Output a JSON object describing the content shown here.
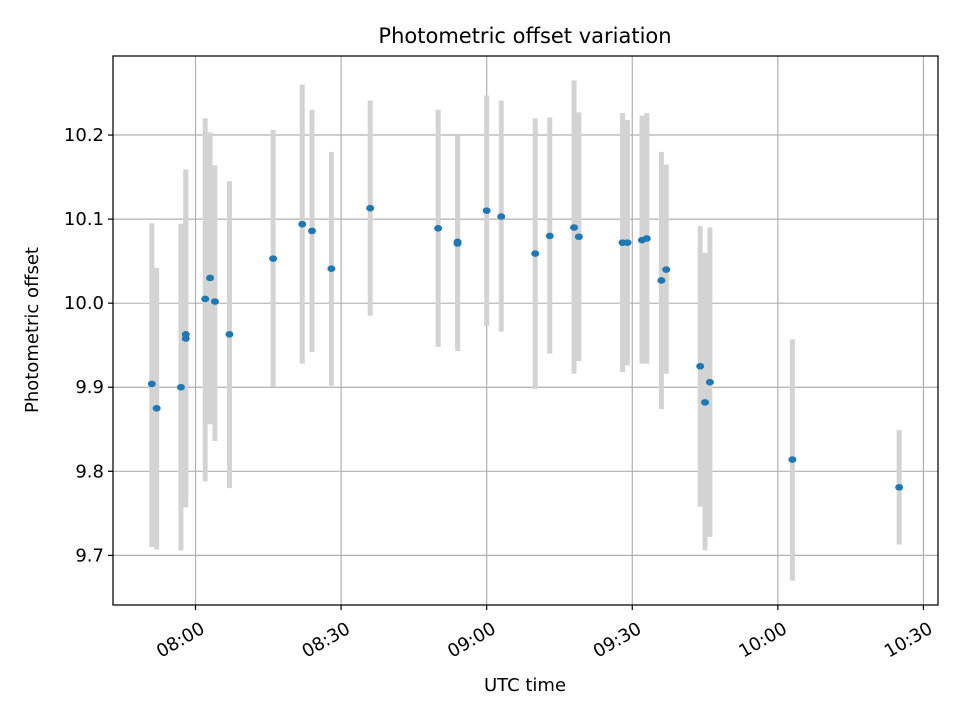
{
  "chart_data": {
    "type": "scatter",
    "title": "Photometric offset variation",
    "xlabel": "UTC time",
    "ylabel": "Photometric offset",
    "x_unit": "UTC time (hh:mm)",
    "xlim": [
      "07:43",
      "10:33"
    ],
    "ylim": [
      9.641,
      10.294
    ],
    "grid": true,
    "error_bar_color": "#d3d3d3",
    "point_color": "#1f77b4",
    "xticks": [
      "08:00",
      "08:30",
      "09:00",
      "09:30",
      "10:00",
      "10:30"
    ],
    "yticks": [
      9.7,
      9.8,
      9.9,
      10.0,
      10.1,
      10.2
    ],
    "points": [
      {
        "x": "07:51",
        "y": 9.904,
        "yerr_low": 9.71,
        "yerr_high": 10.095
      },
      {
        "x": "07:52",
        "y": 9.875,
        "yerr_low": 9.707,
        "yerr_high": 10.042
      },
      {
        "x": "07:57",
        "y": 9.9,
        "yerr_low": 9.706,
        "yerr_high": 10.094
      },
      {
        "x": "07:58",
        "y": 9.958,
        "yerr_low": 9.757,
        "yerr_high": 10.159
      },
      {
        "x": "07:58",
        "y": 9.963,
        "yerr_low": 9.771,
        "yerr_high": 10.155
      },
      {
        "x": "08:02",
        "y": 10.005,
        "yerr_low": 9.788,
        "yerr_high": 10.22
      },
      {
        "x": "08:03",
        "y": 10.03,
        "yerr_low": 9.856,
        "yerr_high": 10.203
      },
      {
        "x": "08:04",
        "y": 10.002,
        "yerr_low": 9.836,
        "yerr_high": 10.164
      },
      {
        "x": "08:07",
        "y": 9.963,
        "yerr_low": 9.78,
        "yerr_high": 10.145
      },
      {
        "x": "08:16",
        "y": 10.053,
        "yerr_low": 9.901,
        "yerr_high": 10.206
      },
      {
        "x": "08:22",
        "y": 10.094,
        "yerr_low": 9.928,
        "yerr_high": 10.26
      },
      {
        "x": "08:24",
        "y": 10.086,
        "yerr_low": 9.942,
        "yerr_high": 10.23
      },
      {
        "x": "08:28",
        "y": 10.041,
        "yerr_low": 9.902,
        "yerr_high": 10.18
      },
      {
        "x": "08:36",
        "y": 10.113,
        "yerr_low": 9.985,
        "yerr_high": 10.241
      },
      {
        "x": "08:50",
        "y": 10.089,
        "yerr_low": 9.948,
        "yerr_high": 10.23
      },
      {
        "x": "08:54",
        "y": 10.071,
        "yerr_low": 9.943,
        "yerr_high": 10.199
      },
      {
        "x": "08:54",
        "y": 10.073,
        "yerr_low": 9.948,
        "yerr_high": 10.197
      },
      {
        "x": "09:00",
        "y": 10.11,
        "yerr_low": 9.973,
        "yerr_high": 10.247
      },
      {
        "x": "09:03",
        "y": 10.103,
        "yerr_low": 9.966,
        "yerr_high": 10.241
      },
      {
        "x": "09:10",
        "y": 10.059,
        "yerr_low": 9.898,
        "yerr_high": 10.22
      },
      {
        "x": "09:13",
        "y": 10.08,
        "yerr_low": 9.94,
        "yerr_high": 10.221
      },
      {
        "x": "09:18",
        "y": 10.09,
        "yerr_low": 9.916,
        "yerr_high": 10.265
      },
      {
        "x": "09:19",
        "y": 10.079,
        "yerr_low": 9.931,
        "yerr_high": 10.227
      },
      {
        "x": "09:28",
        "y": 10.072,
        "yerr_low": 9.918,
        "yerr_high": 10.226
      },
      {
        "x": "09:29",
        "y": 10.072,
        "yerr_low": 9.926,
        "yerr_high": 10.218
      },
      {
        "x": "09:32",
        "y": 10.075,
        "yerr_low": 9.928,
        "yerr_high": 10.223
      },
      {
        "x": "09:33",
        "y": 10.077,
        "yerr_low": 9.928,
        "yerr_high": 10.226
      },
      {
        "x": "09:36",
        "y": 10.027,
        "yerr_low": 9.874,
        "yerr_high": 10.18
      },
      {
        "x": "09:37",
        "y": 10.04,
        "yerr_low": 9.916,
        "yerr_high": 10.165
      },
      {
        "x": "09:44",
        "y": 9.925,
        "yerr_low": 9.758,
        "yerr_high": 10.092
      },
      {
        "x": "09:45",
        "y": 9.882,
        "yerr_low": 9.706,
        "yerr_high": 10.06
      },
      {
        "x": "09:46",
        "y": 9.906,
        "yerr_low": 9.722,
        "yerr_high": 10.09
      },
      {
        "x": "10:03",
        "y": 9.814,
        "yerr_low": 9.67,
        "yerr_high": 9.957
      },
      {
        "x": "10:25",
        "y": 9.781,
        "yerr_low": 9.713,
        "yerr_high": 9.849
      }
    ]
  }
}
